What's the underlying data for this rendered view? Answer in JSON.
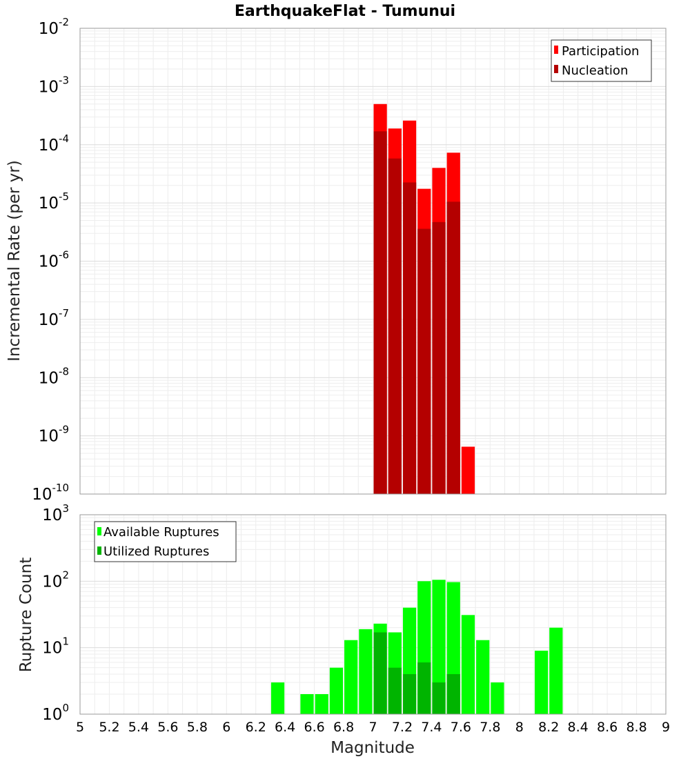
{
  "title": "EarthquakeFlat - Tumunui",
  "xlabel": "Magnitude",
  "chart_data": [
    {
      "type": "bar",
      "ylabel": "Incremental Rate (per yr)",
      "yscale": "log",
      "ylim_exp": [
        -10,
        -2
      ],
      "xlim": [
        5,
        9
      ],
      "grid": true,
      "legend_position": "top-right",
      "series": [
        {
          "name": "Participation",
          "color": "#ff0000",
          "x": [
            7.05,
            7.15,
            7.25,
            7.35,
            7.45,
            7.55,
            7.65
          ],
          "values": [
            0.0005,
            0.00019,
            0.00026,
            1.75e-05,
            4e-05,
            7.3e-05,
            6.5e-10
          ]
        },
        {
          "name": "Nucleation",
          "color": "#b40000",
          "x": [
            7.05,
            7.15,
            7.25,
            7.35,
            7.45,
            7.55
          ],
          "values": [
            0.00017,
            5.8e-05,
            2.25e-05,
            3.6e-06,
            4.7e-06,
            1.05e-05
          ]
        }
      ]
    },
    {
      "type": "bar",
      "ylabel": "Rupture Count",
      "yscale": "log",
      "ylim_exp": [
        0,
        3
      ],
      "xlim": [
        5,
        9
      ],
      "grid": true,
      "legend_position": "top-left",
      "series": [
        {
          "name": "Available Ruptures",
          "color": "#00ff00",
          "x": [
            6.35,
            6.55,
            6.65,
            6.75,
            6.85,
            6.95,
            7.05,
            7.15,
            7.25,
            7.35,
            7.45,
            7.55,
            7.65,
            7.75,
            7.85,
            8.15,
            8.25
          ],
          "values": [
            3,
            2,
            2,
            5,
            13,
            19,
            23,
            17,
            40,
            100,
            105,
            97,
            31,
            13,
            3,
            9,
            20
          ]
        },
        {
          "name": "Utilized Ruptures",
          "color": "#00b400",
          "x": [
            7.05,
            7.15,
            7.25,
            7.35,
            7.45,
            7.55,
            7.65
          ],
          "values": [
            17,
            5,
            4,
            6,
            3,
            4,
            1
          ]
        }
      ]
    }
  ],
  "xticks": [
    "5",
    "5.2",
    "5.4",
    "5.6",
    "5.8",
    "6",
    "6.2",
    "6.4",
    "6.6",
    "6.8",
    "7",
    "7.2",
    "7.4",
    "7.6",
    "7.8",
    "8",
    "8.2",
    "8.4",
    "8.6",
    "8.8",
    "9"
  ]
}
